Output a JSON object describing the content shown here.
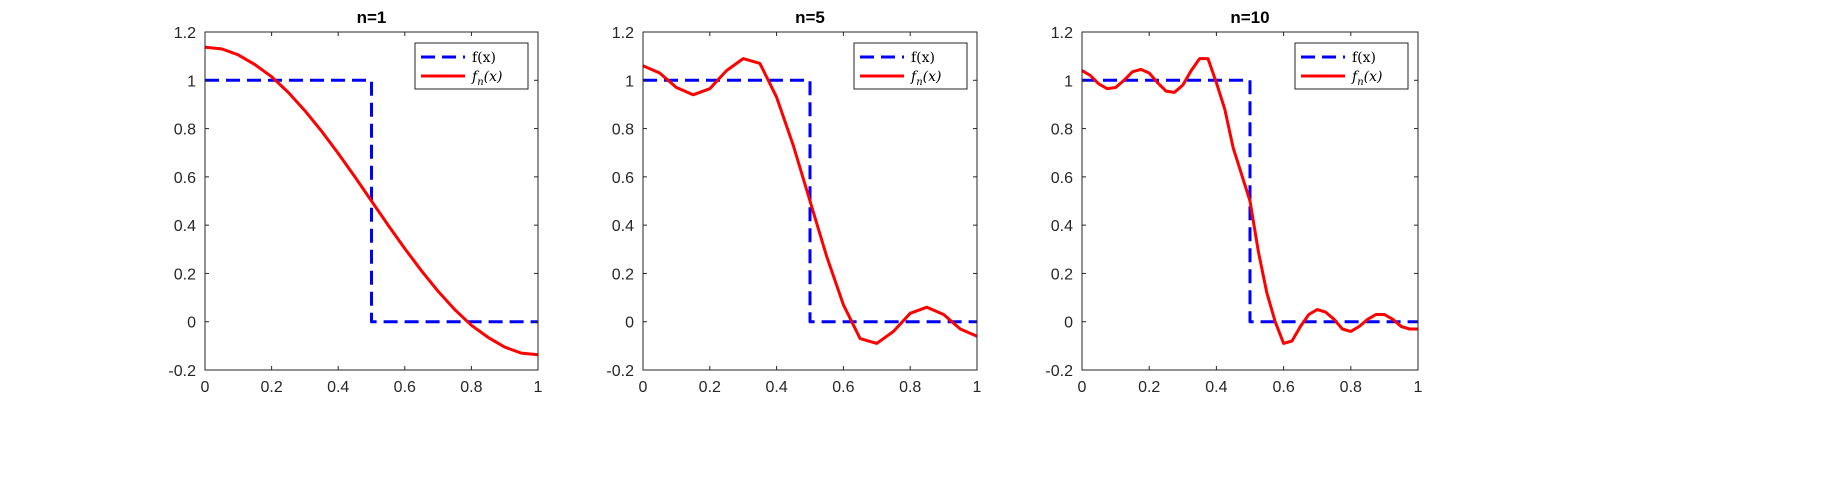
{
  "chart_data": [
    {
      "type": "line",
      "title": "n=1",
      "n": 1,
      "xlim": [
        0,
        1
      ],
      "ylim": [
        -0.2,
        1.2
      ],
      "xticks": [
        0,
        0.2,
        0.4,
        0.6,
        0.8,
        1
      ],
      "xtick_labels": [
        "0",
        "0.2",
        "0.4",
        "0.6",
        "0.8",
        "1"
      ],
      "yticks": [
        -0.2,
        0,
        0.2,
        0.4,
        0.6,
        0.8,
        1,
        1.2
      ],
      "ytick_labels": [
        "-0.2",
        "0",
        "0.2",
        "0.4",
        "0.6",
        "0.8",
        "1",
        "1.2"
      ],
      "grid": false,
      "legend_position": "top-right",
      "series": [
        {
          "name": "f(x)",
          "color": "#0000ff",
          "style": "dashed",
          "x": [
            0,
            0.5,
            0.5,
            1
          ],
          "y": [
            1,
            1,
            0,
            0
          ]
        },
        {
          "name": "f_n(x)",
          "color": "#ff0000",
          "style": "solid",
          "x": [
            0,
            0.05,
            0.1,
            0.15,
            0.2,
            0.25,
            0.3,
            0.35,
            0.4,
            0.45,
            0.5,
            0.55,
            0.6,
            0.65,
            0.7,
            0.75,
            0.8,
            0.85,
            0.9,
            0.95,
            1
          ],
          "y": [
            1.137,
            1.13,
            1.105,
            1.065,
            1.015,
            0.95,
            0.874,
            0.789,
            0.697,
            0.6,
            0.5,
            0.4,
            0.303,
            0.211,
            0.126,
            0.05,
            -0.015,
            -0.065,
            -0.105,
            -0.13,
            -0.137
          ]
        }
      ]
    },
    {
      "type": "line",
      "title": "n=5",
      "n": 5,
      "xlim": [
        0,
        1
      ],
      "ylim": [
        -0.2,
        1.2
      ],
      "xticks": [
        0,
        0.2,
        0.4,
        0.6,
        0.8,
        1
      ],
      "xtick_labels": [
        "0",
        "0.2",
        "0.4",
        "0.6",
        "0.8",
        "1"
      ],
      "yticks": [
        -0.2,
        0,
        0.2,
        0.4,
        0.6,
        0.8,
        1,
        1.2
      ],
      "ytick_labels": [
        "-0.2",
        "0",
        "0.2",
        "0.4",
        "0.6",
        "0.8",
        "1",
        "1.2"
      ],
      "grid": false,
      "legend_position": "top-right",
      "series": [
        {
          "name": "f(x)",
          "color": "#0000ff",
          "style": "dashed",
          "x": [
            0,
            0.5,
            0.5,
            1
          ],
          "y": [
            1,
            1,
            0,
            0
          ]
        },
        {
          "name": "f_n(x)",
          "color": "#ff0000",
          "style": "solid",
          "x": [
            0,
            0.05,
            0.1,
            0.15,
            0.2,
            0.25,
            0.3,
            0.35,
            0.4,
            0.45,
            0.5,
            0.55,
            0.6,
            0.65,
            0.7,
            0.75,
            0.8,
            0.85,
            0.9,
            0.95,
            1
          ],
          "y": [
            1.06,
            1.03,
            0.97,
            0.94,
            0.965,
            1.04,
            1.09,
            1.07,
            0.93,
            0.73,
            0.5,
            0.27,
            0.07,
            -0.07,
            -0.09,
            -0.04,
            0.035,
            0.06,
            0.03,
            -0.03,
            -0.06
          ]
        }
      ]
    },
    {
      "type": "line",
      "title": "n=10",
      "n": 10,
      "xlim": [
        0,
        1
      ],
      "ylim": [
        -0.2,
        1.2
      ],
      "xticks": [
        0,
        0.2,
        0.4,
        0.6,
        0.8,
        1
      ],
      "xtick_labels": [
        "0",
        "0.2",
        "0.4",
        "0.6",
        "0.8",
        "1"
      ],
      "yticks": [
        -0.2,
        0,
        0.2,
        0.4,
        0.6,
        0.8,
        1,
        1.2
      ],
      "ytick_labels": [
        "-0.2",
        "0",
        "0.2",
        "0.4",
        "0.6",
        "0.8",
        "1",
        "1.2"
      ],
      "grid": false,
      "legend_position": "top-right",
      "series": [
        {
          "name": "f(x)",
          "color": "#0000ff",
          "style": "dashed",
          "x": [
            0,
            0.5,
            0.5,
            1
          ],
          "y": [
            1,
            1,
            0,
            0
          ]
        },
        {
          "name": "f_n(x)",
          "color": "#ff0000",
          "style": "solid",
          "x": [
            0,
            0.025,
            0.05,
            0.075,
            0.1,
            0.125,
            0.15,
            0.175,
            0.2,
            0.225,
            0.25,
            0.275,
            0.3,
            0.325,
            0.35,
            0.375,
            0.4,
            0.425,
            0.45,
            0.475,
            0.5,
            0.525,
            0.55,
            0.575,
            0.6,
            0.625,
            0.65,
            0.675,
            0.7,
            0.725,
            0.75,
            0.775,
            0.8,
            0.825,
            0.85,
            0.875,
            0.9,
            0.925,
            0.95,
            0.975,
            1
          ],
          "y": [
            1.04,
            1.02,
            0.985,
            0.965,
            0.97,
            1.0,
            1.035,
            1.045,
            1.03,
            0.99,
            0.955,
            0.95,
            0.98,
            1.04,
            1.09,
            1.09,
            0.99,
            0.88,
            0.72,
            0.61,
            0.5,
            0.29,
            0.12,
            0.0,
            -0.09,
            -0.08,
            -0.02,
            0.03,
            0.05,
            0.04,
            0.01,
            -0.03,
            -0.04,
            -0.02,
            0.01,
            0.03,
            0.03,
            0.01,
            -0.02,
            -0.03,
            -0.03
          ]
        }
      ]
    }
  ]
}
